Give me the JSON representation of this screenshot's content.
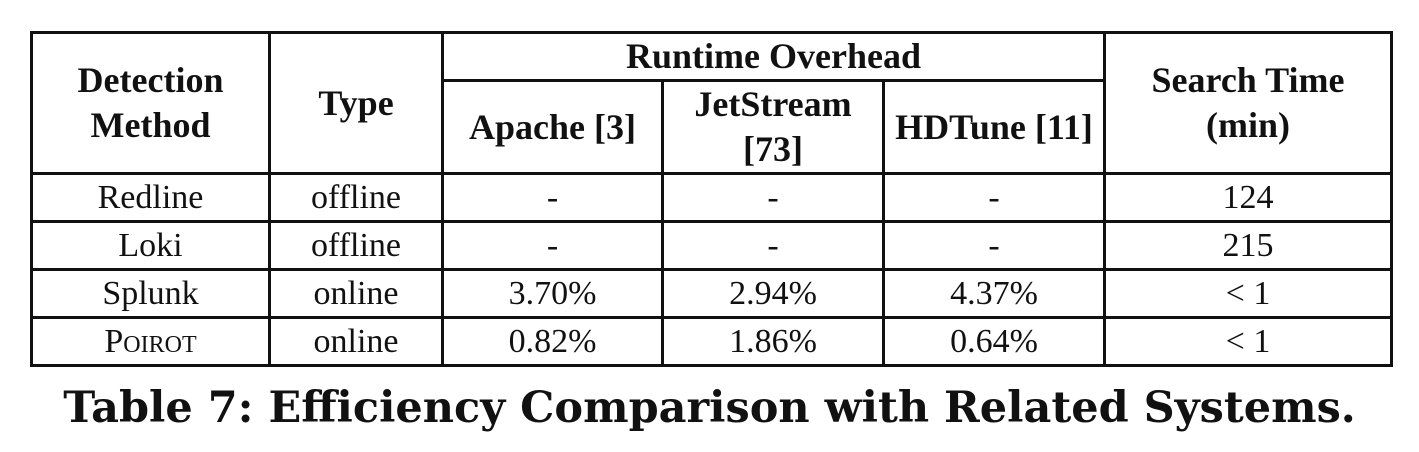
{
  "table": {
    "headers": {
      "detection_method": "Detection Method",
      "type": "Type",
      "runtime_overhead": "Runtime Overhead",
      "apache": "Apache [3]",
      "jetstream": "JetStream [73]",
      "hdtune": "HDTune [11]",
      "search_time": "Search Time (min)"
    },
    "rows": [
      {
        "method": "Redline",
        "type": "offline",
        "apache": "-",
        "jetstream": "-",
        "hdtune": "-",
        "search_time": "124"
      },
      {
        "method": "Loki",
        "type": "offline",
        "apache": "-",
        "jetstream": "-",
        "hdtune": "-",
        "search_time": "215"
      },
      {
        "method": "Splunk",
        "type": "online",
        "apache": "3.70%",
        "jetstream": "2.94%",
        "hdtune": "4.37%",
        "search_time": "< 1"
      },
      {
        "method": "Poirot",
        "type": "online",
        "apache": "0.82%",
        "jetstream": "1.86%",
        "hdtune": "0.64%",
        "search_time": "< 1"
      }
    ]
  },
  "caption": "Table 7: Efficiency Comparison with Related Systems."
}
